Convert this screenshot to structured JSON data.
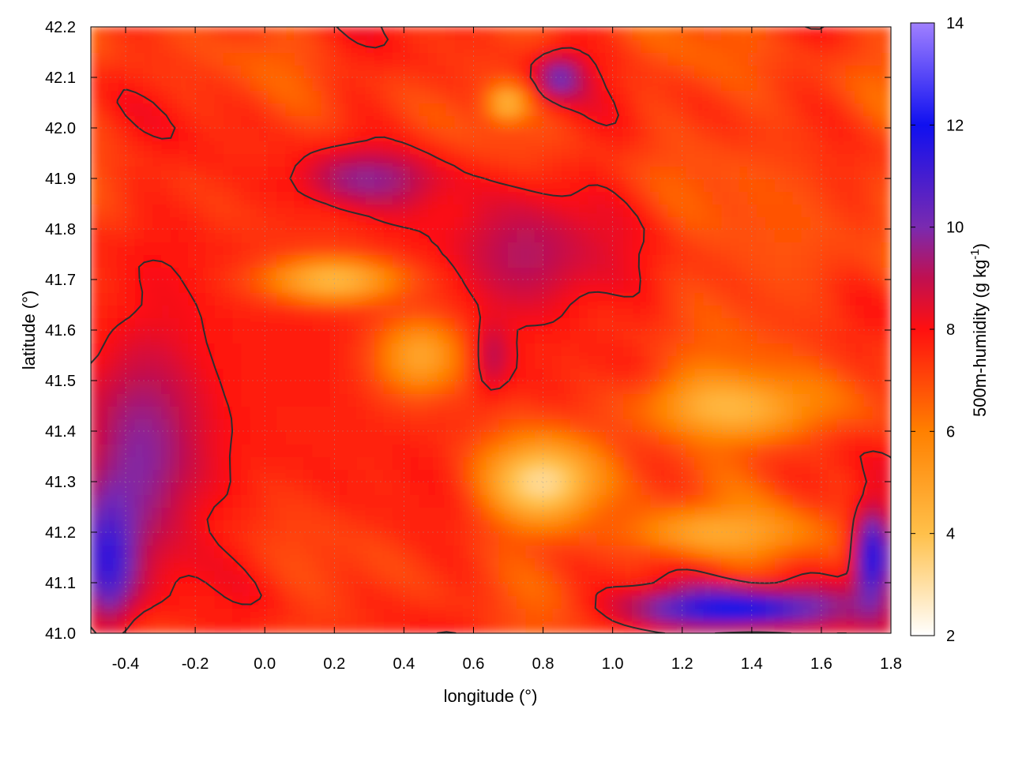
{
  "chart_data": {
    "type": "heatmap",
    "xlabel": "longitude (°)",
    "ylabel": "latitude (°)",
    "colorbar_label": "500m-humidity (g kg",
    "colorbar_label_sup": "-1",
    "colorbar_label_end": ")",
    "xlim": [
      -0.5,
      1.8
    ],
    "ylim": [
      41.0,
      42.2
    ],
    "clim": [
      2,
      14
    ],
    "x_ticks": [
      -0.4,
      -0.2,
      0.0,
      0.2,
      0.4,
      0.6,
      0.8,
      1.0,
      1.2,
      1.4,
      1.6,
      1.8
    ],
    "x_tick_labels": [
      "-0.4",
      "-0.2",
      "0.0",
      "0.2",
      "0.4",
      "0.6",
      "0.8",
      "1.0",
      "1.2",
      "1.4",
      "1.6",
      "1.8"
    ],
    "y_ticks": [
      41.0,
      41.1,
      41.2,
      41.3,
      41.4,
      41.5,
      41.6,
      41.7,
      41.8,
      41.9,
      42.0,
      42.1,
      42.2
    ],
    "y_tick_labels": [
      "41.0",
      "41.1",
      "41.2",
      "41.3",
      "41.4",
      "41.5",
      "41.6",
      "41.7",
      "41.8",
      "41.9",
      "42.0",
      "42.1",
      "42.2"
    ],
    "colorbar_ticks": [
      2,
      4,
      6,
      8,
      10,
      12,
      14
    ],
    "colorbar_tick_labels": [
      "2",
      "4",
      "6",
      "8",
      "10",
      "12",
      "14"
    ],
    "colormap": [
      {
        "v": 2,
        "color": "#ffffff"
      },
      {
        "v": 4,
        "color": "#ffc04a"
      },
      {
        "v": 6,
        "color": "#ff8000"
      },
      {
        "v": 8,
        "color": "#ff1010"
      },
      {
        "v": 9,
        "color": "#c01050"
      },
      {
        "v": 10,
        "color": "#7a2ab0"
      },
      {
        "v": 12,
        "color": "#1010f0"
      },
      {
        "v": 14,
        "color": "#a080ff"
      }
    ],
    "grid": true,
    "field_blobs": [
      {
        "x": 0.1,
        "y": 41.55,
        "rx": 1.3,
        "ry": 0.6,
        "v": 7.8
      },
      {
        "x": -0.35,
        "y": 41.35,
        "rx": 0.25,
        "ry": 0.35,
        "v": 9.8
      },
      {
        "x": -0.45,
        "y": 41.15,
        "rx": 0.12,
        "ry": 0.2,
        "v": 11.5
      },
      {
        "x": 0.75,
        "y": 41.75,
        "rx": 0.35,
        "ry": 0.2,
        "v": 9.2
      },
      {
        "x": 0.3,
        "y": 41.9,
        "rx": 0.3,
        "ry": 0.08,
        "v": 9.8
      },
      {
        "x": 0.65,
        "y": 41.55,
        "rx": 0.08,
        "ry": 0.1,
        "v": 9.6
      },
      {
        "x": 0.2,
        "y": 41.7,
        "rx": 0.3,
        "ry": 0.06,
        "v": 3.8
      },
      {
        "x": 0.45,
        "y": 41.55,
        "rx": 0.2,
        "ry": 0.12,
        "v": 4.8
      },
      {
        "x": 0.8,
        "y": 41.3,
        "rx": 0.25,
        "ry": 0.12,
        "v": 3.0
      },
      {
        "x": 1.35,
        "y": 41.45,
        "rx": 0.4,
        "ry": 0.1,
        "v": 4.0
      },
      {
        "x": 1.3,
        "y": 41.2,
        "rx": 0.4,
        "ry": 0.07,
        "v": 4.5
      },
      {
        "x": 0.85,
        "y": 42.1,
        "rx": 0.1,
        "ry": 0.06,
        "v": 10.5
      },
      {
        "x": 0.7,
        "y": 42.05,
        "rx": 0.08,
        "ry": 0.04,
        "v": 3.5
      },
      {
        "x": 1.35,
        "y": 41.05,
        "rx": 0.45,
        "ry": 0.06,
        "v": 12.5
      },
      {
        "x": 1.75,
        "y": 41.15,
        "rx": 0.08,
        "ry": 0.15,
        "v": 12.0
      },
      {
        "x": 1.5,
        "y": 41.8,
        "rx": 0.3,
        "ry": 0.35,
        "v": 6.8
      }
    ],
    "contour_level": 8,
    "grid_rows": 48,
    "grid_cols": 90
  }
}
